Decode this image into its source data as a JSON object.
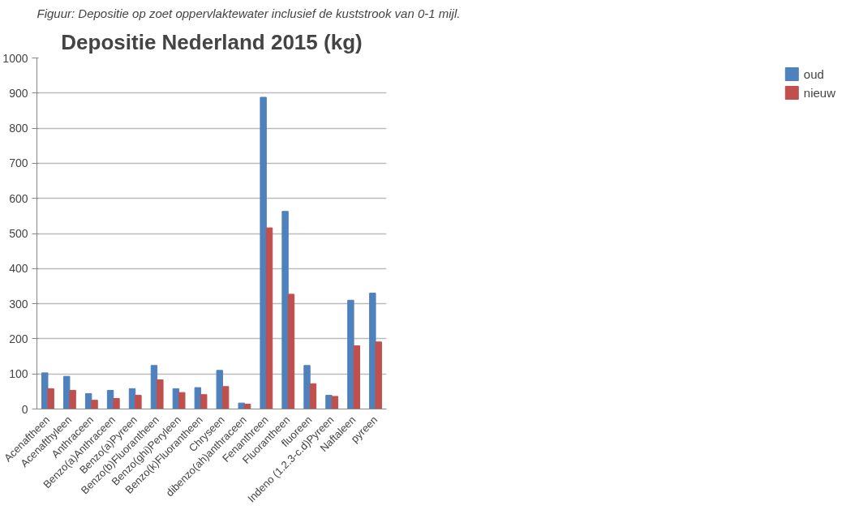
{
  "chart_data": {
    "type": "bar",
    "title": "Depositie Nederland 2015 (kg)",
    "annotations": [
      "Figuur: Depositie op zoet oppervlaktewater inclusief de kuststrook van 0-1 mijl."
    ],
    "categories": [
      "Acenaftheen",
      "Acenafthyleen",
      "Anthraceen",
      "Benzo(a)Anthraceen",
      "Benzo(a)Pyreen",
      "Benzo(b)Fluorantheen",
      "Benzo(ghi)Peryleen",
      "Benzo(k)Fluorantheen",
      "Chryseen",
      "dibenzo(ah)anthraceen",
      "Fenanthreen",
      "Fluorantheen",
      "fluoreen",
      "Indeno (1.2.3-c.d)Pyreen",
      "Naftaleen",
      "pyreen"
    ],
    "series": [
      {
        "name": "oud",
        "color": "#4f81bd",
        "values": [
          103,
          93,
          44,
          53,
          58,
          124,
          58,
          61,
          110,
          17,
          888,
          563,
          124,
          39,
          310,
          330
        ]
      },
      {
        "name": "nieuw",
        "color": "#c0504d",
        "values": [
          58,
          53,
          25,
          30,
          39,
          83,
          47,
          41,
          64,
          14,
          516,
          327,
          72,
          36,
          180,
          191
        ]
      }
    ],
    "ylim": [
      0,
      1000
    ],
    "yticks": [
      0,
      100,
      200,
      300,
      400,
      500,
      600,
      700,
      800,
      900,
      1000
    ],
    "grid": "y",
    "legend": "right"
  }
}
